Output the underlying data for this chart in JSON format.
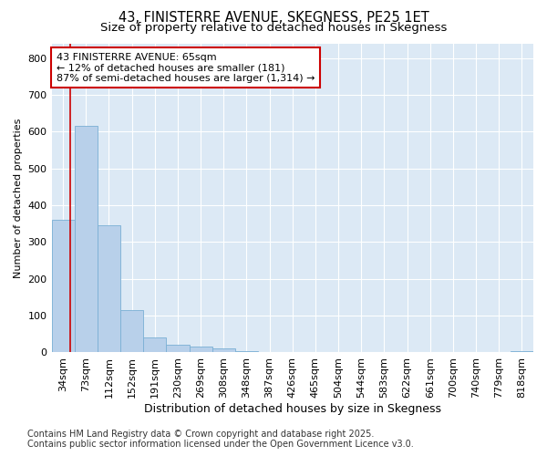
{
  "title": "43, FINISTERRE AVENUE, SKEGNESS, PE25 1ET",
  "subtitle": "Size of property relative to detached houses in Skegness",
  "xlabel": "Distribution of detached houses by size in Skegness",
  "ylabel": "Number of detached properties",
  "categories": [
    "34sqm",
    "73sqm",
    "112sqm",
    "152sqm",
    "191sqm",
    "230sqm",
    "269sqm",
    "308sqm",
    "348sqm",
    "387sqm",
    "426sqm",
    "465sqm",
    "504sqm",
    "544sqm",
    "583sqm",
    "622sqm",
    "661sqm",
    "700sqm",
    "740sqm",
    "779sqm",
    "818sqm"
  ],
  "values": [
    360,
    615,
    345,
    115,
    40,
    20,
    15,
    12,
    3,
    0,
    0,
    0,
    0,
    0,
    0,
    0,
    0,
    0,
    0,
    0,
    3
  ],
  "bar_color": "#b8d0ea",
  "bar_edge_color": "#7aafd4",
  "vline_color": "#cc0000",
  "annotation_line1": "43 FINISTERRE AVENUE: 65sqm",
  "annotation_line2": "← 12% of detached houses are smaller (181)",
  "annotation_line3": "87% of semi-detached houses are larger (1,314) →",
  "annotation_box_color": "#cc0000",
  "annotation_bg_color": "#ffffff",
  "ylim": [
    0,
    840
  ],
  "yticks": [
    0,
    100,
    200,
    300,
    400,
    500,
    600,
    700,
    800
  ],
  "background_color": "#dce9f5",
  "grid_color": "#ffffff",
  "footer_line1": "Contains HM Land Registry data © Crown copyright and database right 2025.",
  "footer_line2": "Contains public sector information licensed under the Open Government Licence v3.0.",
  "title_fontsize": 10.5,
  "subtitle_fontsize": 9.5,
  "xlabel_fontsize": 9,
  "ylabel_fontsize": 8,
  "tick_fontsize": 8,
  "footer_fontsize": 7,
  "annot_fontsize": 8
}
